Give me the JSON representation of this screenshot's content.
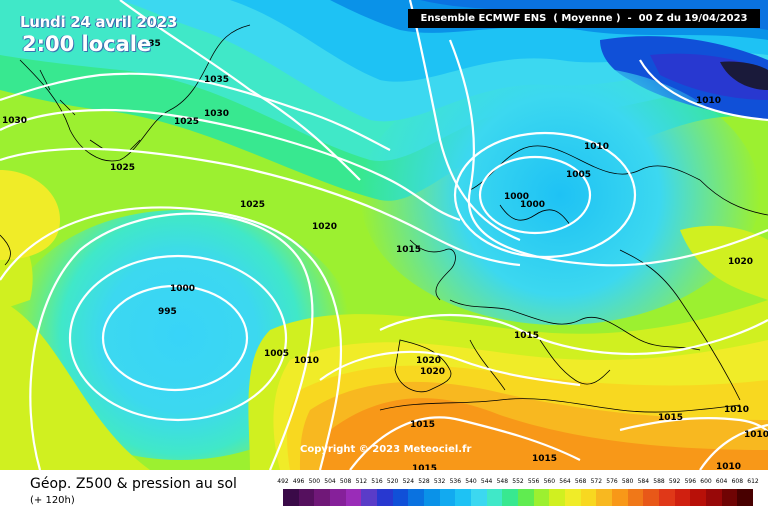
{
  "header": {
    "date": "Lundi 24 avril 2023",
    "time": "2:00 locale",
    "model": "Ensemble ECMWF ENS  ( Moyenne )  -  00 Z du 19/04/2023"
  },
  "map": {
    "isobar_labels": [
      "035",
      "1035",
      "1030",
      "1025",
      "1030",
      "1025",
      "1025",
      "1020",
      "1015",
      "1010",
      "1005",
      "1000",
      "1000",
      "1010",
      "1000",
      "995",
      "1005",
      "1010",
      "1020",
      "1020",
      "1015",
      "1015",
      "1015",
      "1015",
      "1020",
      "1015",
      "1010",
      "1010",
      "1010"
    ],
    "copyright": "Copyright © 2023 Meteociel.fr"
  },
  "legend": {
    "parameter": "Géop. Z500 & pression au sol",
    "lead_time": "(+ 120h)",
    "scale_values": [
      "492",
      "496",
      "500",
      "504",
      "508",
      "512",
      "516",
      "520",
      "524",
      "528",
      "532",
      "536",
      "540",
      "544",
      "548",
      "552",
      "556",
      "560",
      "564",
      "568",
      "572",
      "576",
      "580",
      "584",
      "588",
      "592",
      "596",
      "600",
      "604",
      "608",
      "612"
    ],
    "scale_colors": [
      "#3a0a48",
      "#55105e",
      "#701878",
      "#86209a",
      "#9a2cb8",
      "#5a3cc8",
      "#2838d0",
      "#1050d8",
      "#0a72e0",
      "#0a92e8",
      "#12aaf0",
      "#1ec2f4",
      "#3cd8f0",
      "#40e8c8",
      "#38e890",
      "#60ec50",
      "#9cf030",
      "#d0f020",
      "#f0ec28",
      "#f8d820",
      "#f8b820",
      "#f89818",
      "#f07818",
      "#e85818",
      "#e03818",
      "#d02010",
      "#b81008",
      "#980808",
      "#700404",
      "#480000"
    ]
  }
}
